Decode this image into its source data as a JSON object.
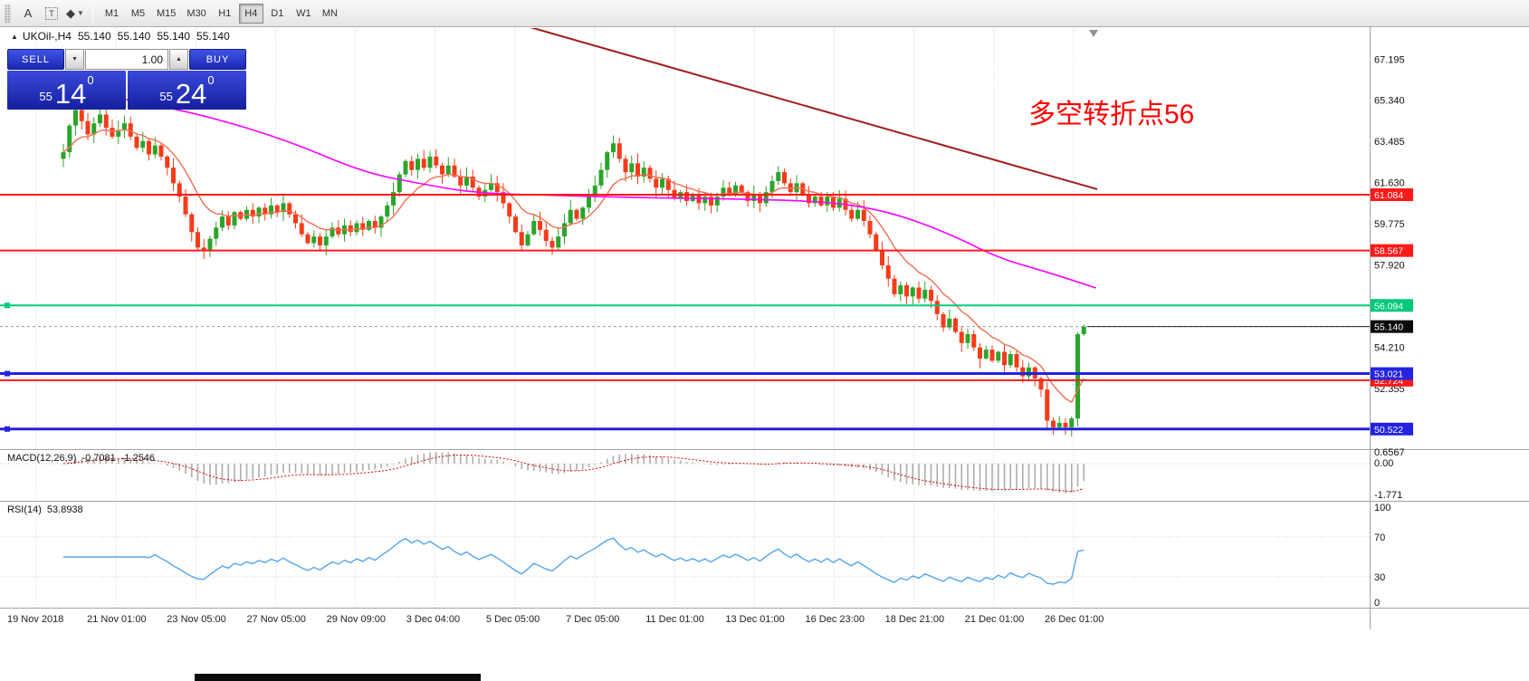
{
  "toolbar": {
    "tools": {
      "text_tool": "A",
      "label_tool": "T",
      "shapes_tool": "◆"
    },
    "timeframes": [
      "M1",
      "M5",
      "M15",
      "M30",
      "H1",
      "H4",
      "D1",
      "W1",
      "MN"
    ],
    "active_timeframe": "H4"
  },
  "symbol_header": {
    "toggle_icon": "▲",
    "symbol": "UKOil-,H4",
    "open": "55.140",
    "high": "55.140",
    "low": "55.140",
    "close": "55.140"
  },
  "trade_panel": {
    "sell_label": "SELL",
    "buy_label": "BUY",
    "volume": "1.00",
    "bid": {
      "prefix": "55",
      "main": "14",
      "sup": "0"
    },
    "ask": {
      "prefix": "55",
      "main": "24",
      "sup": "0"
    }
  },
  "annotation": {
    "text": "多空转折点56",
    "color": "#ff0000"
  },
  "macd_panel": {
    "name": "MACD(12,26,9)",
    "value": "-0.7081",
    "signal": "-1.2546"
  },
  "rsi_panel": {
    "name": "RSI(14)",
    "value": "53.8938"
  },
  "chart_data": {
    "type": "candlestick",
    "symbol": "UKOil-",
    "period": "H4",
    "last_price": 55.14,
    "ylim": [
      49.7,
      68.6
    ],
    "price_ticks": [
      "67.195",
      "65.340",
      "63.485",
      "61.630",
      "59.775",
      "57.920",
      "54.210",
      "52.355"
    ],
    "x_labels": [
      "19 Nov 2018",
      "21 Nov 01:00",
      "23 Nov 05:00",
      "27 Nov 05:00",
      "29 Nov 09:00",
      "3 Dec 04:00",
      "5 Dec 05:00",
      "7 Dec 05:00",
      "11 Dec 01:00",
      "13 Dec 01:00",
      "16 Dec 23:00",
      "18 Dec 21:00",
      "21 Dec 01:00",
      "26 Dec 01:00"
    ],
    "closes": [
      63.0,
      64.2,
      64.9,
      64.4,
      63.8,
      64.3,
      64.7,
      64.1,
      63.7,
      64.0,
      64.3,
      63.7,
      63.2,
      63.5,
      62.9,
      63.3,
      62.8,
      62.3,
      61.6,
      61.0,
      60.2,
      59.4,
      58.7,
      58.6,
      59.1,
      59.6,
      60.1,
      59.7,
      60.3,
      60.0,
      60.4,
      60.1,
      60.5,
      60.2,
      60.6,
      60.3,
      60.7,
      60.2,
      59.8,
      59.3,
      58.9,
      59.2,
      58.8,
      59.2,
      59.6,
      59.3,
      59.7,
      59.4,
      59.8,
      59.5,
      59.9,
      59.6,
      60.1,
      60.6,
      61.2,
      62.0,
      62.6,
      62.2,
      62.7,
      62.3,
      62.8,
      62.4,
      62.0,
      62.4,
      61.9,
      61.5,
      61.9,
      61.4,
      61.0,
      61.3,
      61.6,
      61.2,
      60.7,
      60.1,
      59.4,
      58.8,
      59.3,
      59.9,
      59.5,
      59.0,
      58.7,
      59.2,
      59.8,
      60.4,
      60.0,
      60.5,
      61.0,
      61.5,
      62.2,
      63.0,
      63.4,
      62.7,
      62.1,
      62.5,
      61.9,
      62.3,
      61.8,
      61.4,
      61.8,
      61.3,
      60.9,
      61.2,
      60.8,
      61.1,
      60.7,
      61.0,
      60.6,
      61.0,
      61.4,
      61.1,
      61.5,
      61.2,
      60.8,
      61.1,
      60.7,
      61.2,
      61.7,
      62.1,
      61.6,
      61.2,
      61.6,
      61.1,
      60.7,
      61.0,
      60.6,
      61.0,
      60.5,
      60.9,
      60.4,
      60.0,
      60.4,
      59.9,
      59.3,
      58.6,
      57.9,
      57.3,
      56.6,
      57.0,
      56.5,
      56.9,
      56.4,
      56.8,
      56.3,
      55.7,
      55.1,
      55.5,
      54.9,
      54.4,
      54.8,
      54.2,
      53.7,
      54.1,
      53.6,
      54.0,
      53.4,
      53.9,
      53.3,
      52.9,
      53.3,
      52.8,
      52.3,
      50.9,
      50.6,
      50.8,
      50.6,
      51.0,
      54.8,
      55.14
    ],
    "candle_colors": {
      "up": "#2aa52a",
      "down": "#f63b19"
    },
    "levels": [
      {
        "price": 61.084,
        "label": "61.084",
        "color": "#ff1a1a",
        "width": 2
      },
      {
        "price": 58.567,
        "label": "58.567",
        "color": "#ff1a1a",
        "width": 2
      },
      {
        "price": 56.094,
        "label": "56.094",
        "color": "#00c97c",
        "width": 2,
        "handle": true
      },
      {
        "price": 52.724,
        "label": "52.724",
        "color": "#ff1a1a",
        "width": 2
      },
      {
        "price": 53.021,
        "label": "53.021",
        "color": "#2323e0",
        "width": 3,
        "handle": true
      },
      {
        "price": 50.522,
        "label": "50.522",
        "color": "#2323e0",
        "width": 3,
        "handle": true
      }
    ],
    "current_price": {
      "value": 55.14,
      "label": "55.140",
      "badge_color": "#0a0a0a"
    },
    "trendline": {
      "x1_bar": 76.3,
      "y1_price": 68.64,
      "x2_bar": 169.2,
      "y2_price": 61.33,
      "color": "#a31d1d"
    },
    "ma_slow": {
      "color": "#ff00ff",
      "points": [
        [
          0,
          65.9
        ],
        [
          12,
          65.3
        ],
        [
          24,
          64.6
        ],
        [
          37,
          63.5
        ],
        [
          49,
          62.1
        ],
        [
          58,
          61.6
        ],
        [
          67,
          61.17
        ],
        [
          80,
          61.05
        ],
        [
          93,
          60.96
        ],
        [
          108,
          60.9
        ],
        [
          123,
          60.8
        ],
        [
          131,
          60.55
        ],
        [
          138,
          60.06
        ],
        [
          146,
          59.2
        ],
        [
          153,
          58.23
        ],
        [
          161,
          57.6
        ],
        [
          169,
          56.88
        ]
      ]
    },
    "ma_fast": {
      "type": "ema",
      "period": 10,
      "color": "#ee7050"
    },
    "indicators": {
      "macd": {
        "params": [
          12,
          26,
          9
        ],
        "main": -0.7081,
        "signal": -1.2546,
        "axis_labels": [
          "0.6567",
          "0.00",
          "-1.771"
        ],
        "hist_color": "#adadad",
        "signal_color": "#e00000"
      },
      "rsi": {
        "period": 14,
        "value": 53.8938,
        "levels": [
          70,
          30
        ],
        "axis_labels": [
          "100",
          "70",
          "30",
          "0"
        ],
        "color": "#56a5e8"
      }
    }
  }
}
